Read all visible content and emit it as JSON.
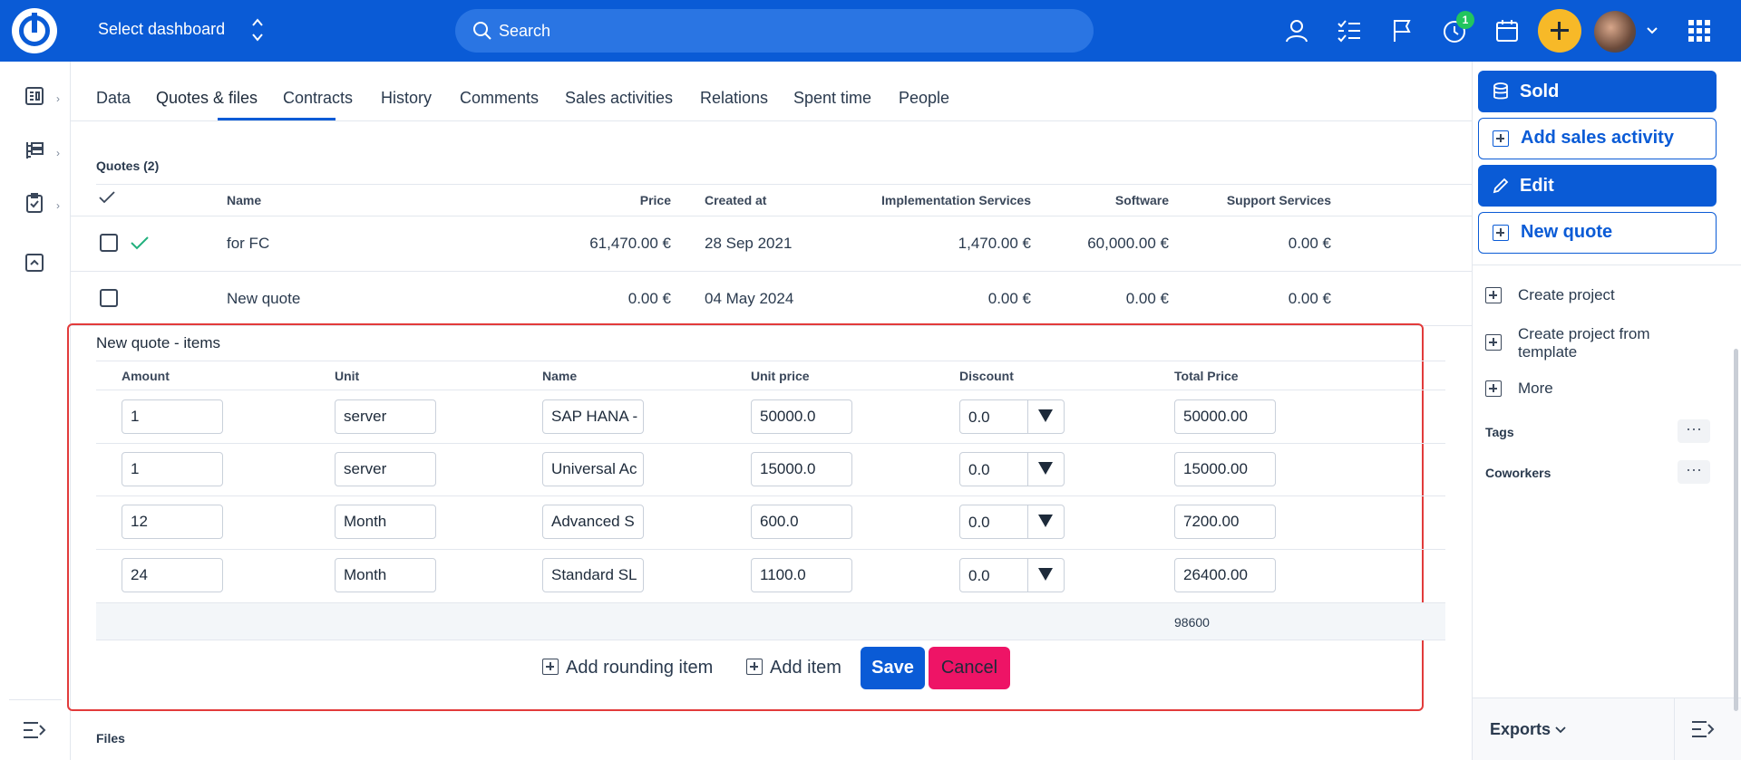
{
  "topbar": {
    "dashboard_select": "Select dashboard",
    "search_placeholder": "Search",
    "timer_badge": "1",
    "brand_color": "#0a5bd6",
    "plus_button_color": "#f7b928"
  },
  "tabs": [
    {
      "label": "Data"
    },
    {
      "label": "Quotes & files",
      "active": true
    },
    {
      "label": "Contracts"
    },
    {
      "label": "History"
    },
    {
      "label": "Comments"
    },
    {
      "label": "Sales activities"
    },
    {
      "label": "Relations"
    },
    {
      "label": "Spent time"
    },
    {
      "label": "People"
    }
  ],
  "quotes": {
    "title": "Quotes (2)",
    "columns": [
      "Name",
      "Price",
      "Created at",
      "Implementation Services",
      "Software",
      "Support Services"
    ],
    "rows": [
      {
        "name": "for FC",
        "price": "61,470.00 €",
        "created_at": "28 Sep 2021",
        "implementation": "1,470.00 €",
        "software": "60,000.00 €",
        "support": "0.00 €",
        "accepted": true
      },
      {
        "name": "New quote",
        "price": "0.00 €",
        "created_at": "04 May 2024",
        "implementation": "0.00 €",
        "software": "0.00 €",
        "support": "0.00 €",
        "accepted": false
      }
    ]
  },
  "items": {
    "title": "New quote - items",
    "columns": [
      "Amount",
      "Unit",
      "Name",
      "Unit price",
      "Discount",
      "Total Price"
    ],
    "rows": [
      {
        "amount": "1",
        "unit": "server",
        "name": "SAP HANA -",
        "unit_price": "50000.0",
        "discount": "0.0",
        "total": "50000.00"
      },
      {
        "amount": "1",
        "unit": "server",
        "name": "Universal Ac",
        "unit_price": "15000.0",
        "discount": "0.0",
        "total": "15000.00"
      },
      {
        "amount": "12",
        "unit": "Month",
        "name": "Advanced S",
        "unit_price": "600.0",
        "discount": "0.0",
        "total": "7200.00"
      },
      {
        "amount": "24",
        "unit": "Month",
        "name": "Standard SL",
        "unit_price": "1100.0",
        "discount": "0.0",
        "total": "26400.00"
      }
    ],
    "sum": "98600",
    "add_rounding_label": "Add rounding item",
    "add_item_label": "Add item",
    "save_label": "Save",
    "cancel_label": "Cancel"
  },
  "files": {
    "title": "Files"
  },
  "sidebar": {
    "sold_label": "Sold",
    "add_sales_activity_label": "Add sales activity",
    "edit_label": "Edit",
    "new_quote_label": "New quote",
    "create_project_label": "Create project",
    "create_from_template_label": "Create project from template",
    "more_label": "More",
    "tags_label": "Tags",
    "coworkers_label": "Coworkers",
    "exports_label": "Exports"
  }
}
